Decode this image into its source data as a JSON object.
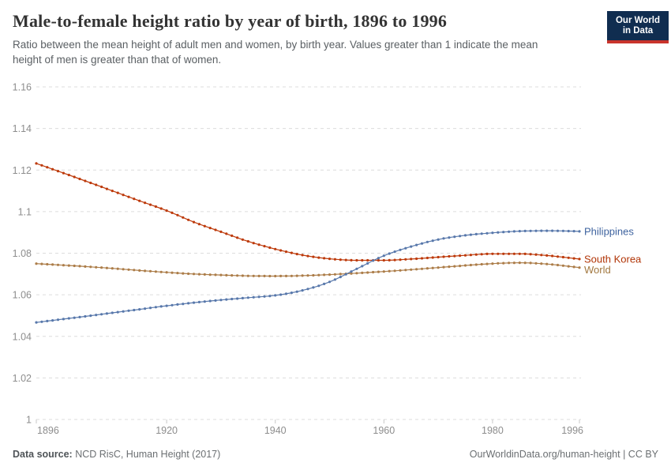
{
  "header": {
    "title": "Male-to-female height ratio by year of birth, 1896 to 1996",
    "subtitle_line1": "Ratio between the mean height of adult men and women, by birth year. Values greater than 1 indicate the mean",
    "subtitle_line2": "height of men is greater than that of women."
  },
  "logo": {
    "line1": "Our World",
    "line2": "in Data",
    "bg_color": "#102d50",
    "bar_color": "#c9342c"
  },
  "footer": {
    "source_label": "Data source:",
    "source_text": " NCD RisC, Human Height (2017)",
    "credit": "OurWorldinData.org/human-height | CC BY"
  },
  "chart_data": {
    "type": "line",
    "title": "Male-to-female height ratio by year of birth, 1896 to 1996",
    "xlabel": "",
    "ylabel": "",
    "xlim": [
      1896,
      1996
    ],
    "ylim": [
      1,
      1.16
    ],
    "grid": "horizontal dashed",
    "legend_position": "end-of-line labels, right side",
    "marker_style": "small dot every year",
    "x_ticks": [
      "1896",
      "1920",
      "1940",
      "1960",
      "1980",
      "1996"
    ],
    "y_ticks": [
      "1",
      "1.02",
      "1.04",
      "1.06",
      "1.08",
      "1.1",
      "1.12",
      "1.14",
      "1.16"
    ],
    "years": [
      1896,
      1900,
      1905,
      1910,
      1915,
      1920,
      1925,
      1930,
      1935,
      1940,
      1945,
      1950,
      1955,
      1960,
      1965,
      1970,
      1975,
      1980,
      1985,
      1990,
      1995,
      1996
    ],
    "series": [
      {
        "name": "World",
        "color": "#ac7d49",
        "label_color": "#a2783f",
        "values": [
          1.075,
          1.0744,
          1.0736,
          1.0727,
          1.0717,
          1.0708,
          1.07,
          1.0695,
          1.0691,
          1.069,
          1.0692,
          1.0697,
          1.0704,
          1.0712,
          1.0721,
          1.0731,
          1.0741,
          1.075,
          1.0754,
          1.0748,
          1.0734,
          1.0731
        ]
      },
      {
        "name": "South Korea",
        "color": "#bd3a0b",
        "label_color": "#b13507",
        "values": [
          1.1232,
          1.1195,
          1.1148,
          1.11,
          1.1052,
          1.1005,
          1.095,
          1.0903,
          1.0857,
          1.082,
          1.0791,
          1.0773,
          1.0766,
          1.0766,
          1.0772,
          1.0781,
          1.079,
          1.0797,
          1.0797,
          1.0789,
          1.0775,
          1.0772
        ]
      },
      {
        "name": "Philippines",
        "color": "#5878ab",
        "label_color": "#3e639f",
        "values": [
          1.0467,
          1.048,
          1.0496,
          1.0513,
          1.053,
          1.0547,
          1.0562,
          1.0575,
          1.0586,
          1.0597,
          1.0621,
          1.0662,
          1.0725,
          1.0788,
          1.0832,
          1.0866,
          1.0886,
          1.0898,
          1.0906,
          1.0908,
          1.0906,
          1.0905
        ]
      }
    ]
  }
}
